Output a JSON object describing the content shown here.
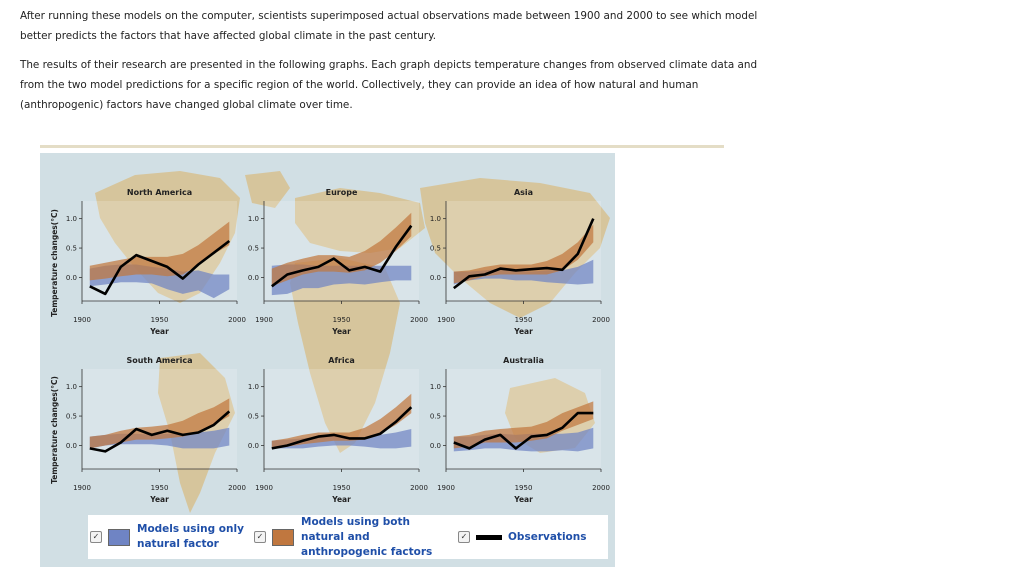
{
  "text": {
    "p1": "After running these models on the computer, scientists superimposed actual observations made between 1900 and 2000 to see which model better predicts the factors that have affected global climate in the past century.",
    "p2": "The results of their research are presented in the following graphs. Each graph depicts temperature changes from observed climate data and from the two model predictions for a specific region of the world. Collectively, they can provide an idea of how natural and human (anthropogenic) factors have changed global climate over time."
  },
  "colors": {
    "natural_band": "#6f84c4",
    "combined_band": "#c0773f",
    "observations": "#000000",
    "land": "#d6c59c",
    "ocean": "#d1dfe4"
  },
  "legend": {
    "natural": "Models using only natural factor",
    "combined": "Models using both natural and anthropogenic factors",
    "observations": "Observations",
    "check_glyph": "✓"
  },
  "chart_data": {
    "type": "line",
    "ylabel": "Temperature changes(°C)",
    "xlabel": "Year",
    "x_ticks": [
      "1900",
      "1950",
      "2000"
    ],
    "y_ticks": [
      "0.0",
      "0.5",
      "1.0"
    ],
    "xlim": [
      1900,
      2000
    ],
    "ylim": [
      -0.4,
      1.3
    ],
    "x": [
      1905,
      1915,
      1925,
      1935,
      1945,
      1955,
      1965,
      1975,
      1985,
      1995
    ],
    "panels": [
      {
        "title": "North America",
        "observations": [
          -0.15,
          -0.28,
          0.18,
          0.38,
          0.28,
          0.18,
          -0.02,
          0.22,
          0.42,
          0.62
        ],
        "natural": {
          "low": [
            -0.15,
            -0.12,
            -0.08,
            -0.08,
            -0.1,
            -0.2,
            -0.28,
            -0.22,
            -0.35,
            -0.2
          ],
          "high": [
            0.15,
            0.2,
            0.22,
            0.22,
            0.18,
            0.15,
            0.1,
            0.12,
            0.05,
            0.05
          ]
        },
        "combined": {
          "low": [
            -0.05,
            -0.02,
            0.02,
            0.05,
            0.05,
            0.02,
            0.05,
            0.22,
            0.4,
            0.55
          ],
          "high": [
            0.2,
            0.25,
            0.3,
            0.35,
            0.35,
            0.35,
            0.4,
            0.55,
            0.75,
            0.95
          ]
        }
      },
      {
        "title": "Europe",
        "observations": [
          -0.15,
          0.05,
          0.12,
          0.18,
          0.32,
          0.12,
          0.18,
          0.1,
          0.52,
          0.88
        ],
        "natural": {
          "low": [
            -0.3,
            -0.28,
            -0.18,
            -0.18,
            -0.12,
            -0.1,
            -0.12,
            -0.08,
            -0.05,
            -0.05
          ],
          "high": [
            0.2,
            0.22,
            0.22,
            0.2,
            0.2,
            0.2,
            0.2,
            0.2,
            0.2,
            0.2
          ]
        },
        "combined": {
          "low": [
            -0.15,
            -0.05,
            0.05,
            0.1,
            0.1,
            0.08,
            0.12,
            0.25,
            0.45,
            0.7
          ],
          "high": [
            0.15,
            0.25,
            0.32,
            0.38,
            0.38,
            0.35,
            0.45,
            0.62,
            0.85,
            1.1
          ]
        }
      },
      {
        "title": "Asia",
        "observations": [
          -0.18,
          0.02,
          0.05,
          0.15,
          0.12,
          0.14,
          0.16,
          0.13,
          0.4,
          1.0
        ],
        "natural": {
          "low": [
            -0.12,
            -0.05,
            -0.02,
            -0.02,
            -0.05,
            -0.05,
            -0.08,
            -0.1,
            -0.12,
            -0.1
          ],
          "high": [
            0.1,
            0.1,
            0.12,
            0.15,
            0.12,
            0.1,
            0.12,
            0.12,
            0.18,
            0.3
          ]
        },
        "combined": {
          "low": [
            -0.1,
            -0.05,
            0.02,
            0.05,
            0.05,
            0.05,
            0.05,
            0.12,
            0.3,
            0.6
          ],
          "high": [
            0.1,
            0.12,
            0.18,
            0.22,
            0.22,
            0.22,
            0.28,
            0.4,
            0.6,
            0.9
          ]
        }
      },
      {
        "title": "South America",
        "observations": [
          -0.05,
          -0.1,
          0.05,
          0.28,
          0.18,
          0.25,
          0.18,
          0.22,
          0.35,
          0.58
        ],
        "natural": {
          "low": [
            -0.05,
            0.0,
            0.02,
            0.02,
            0.02,
            0.0,
            -0.05,
            -0.05,
            -0.05,
            0.0
          ],
          "high": [
            0.15,
            0.18,
            0.2,
            0.2,
            0.18,
            0.2,
            0.2,
            0.22,
            0.25,
            0.3
          ]
        },
        "combined": {
          "low": [
            -0.05,
            0.0,
            0.05,
            0.1,
            0.1,
            0.12,
            0.15,
            0.22,
            0.35,
            0.5
          ],
          "high": [
            0.15,
            0.18,
            0.25,
            0.3,
            0.32,
            0.35,
            0.42,
            0.55,
            0.65,
            0.8
          ]
        }
      },
      {
        "title": "Africa",
        "observations": [
          -0.05,
          0.0,
          0.08,
          0.15,
          0.18,
          0.12,
          0.12,
          0.2,
          0.4,
          0.65
        ],
        "natural": {
          "low": [
            -0.05,
            -0.05,
            -0.05,
            -0.02,
            0.0,
            0.0,
            -0.02,
            -0.05,
            -0.05,
            -0.02
          ],
          "high": [
            0.08,
            0.1,
            0.12,
            0.15,
            0.15,
            0.12,
            0.12,
            0.18,
            0.22,
            0.28
          ]
        },
        "combined": {
          "low": [
            -0.05,
            -0.02,
            0.02,
            0.05,
            0.08,
            0.08,
            0.1,
            0.2,
            0.35,
            0.55
          ],
          "high": [
            0.08,
            0.12,
            0.18,
            0.22,
            0.22,
            0.22,
            0.3,
            0.45,
            0.65,
            0.88
          ]
        }
      },
      {
        "title": "Australia",
        "observations": [
          0.05,
          -0.05,
          0.1,
          0.18,
          -0.05,
          0.15,
          0.18,
          0.3,
          0.55,
          0.55
        ],
        "natural": {
          "low": [
            -0.1,
            -0.08,
            -0.05,
            -0.05,
            -0.08,
            -0.1,
            -0.1,
            -0.08,
            -0.1,
            -0.05
          ],
          "high": [
            0.15,
            0.15,
            0.18,
            0.2,
            0.18,
            0.2,
            0.2,
            0.2,
            0.22,
            0.3
          ]
        },
        "combined": {
          "low": [
            -0.05,
            -0.02,
            0.05,
            0.05,
            0.05,
            0.08,
            0.12,
            0.25,
            0.35,
            0.45
          ],
          "high": [
            0.15,
            0.18,
            0.25,
            0.28,
            0.3,
            0.32,
            0.4,
            0.55,
            0.65,
            0.75
          ]
        }
      }
    ]
  }
}
